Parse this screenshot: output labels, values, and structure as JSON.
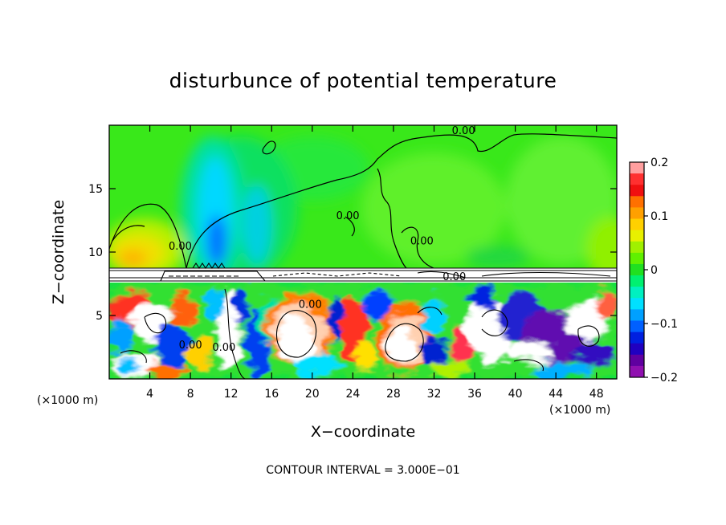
{
  "chart_data": {
    "type": "heatmap",
    "title": "disturbunce of potential temperature",
    "xlabel": "X−coordinate",
    "ylabel": "Z−coordinate",
    "x_unit_left": "(×1000 m)",
    "x_unit_right": "(×1000 m)",
    "contour_note": "CONTOUR INTERVAL = 3.000E−01",
    "xlim": [
      0,
      50
    ],
    "ylim": [
      0,
      20
    ],
    "x_ticks": [
      4,
      8,
      12,
      16,
      20,
      24,
      28,
      32,
      36,
      40,
      44,
      48
    ],
    "x_tick_labels": [
      "4",
      "8",
      "12",
      "16",
      "20",
      "24",
      "28",
      "32",
      "36",
      "40",
      "44",
      "48"
    ],
    "y_ticks": [
      5,
      10,
      15
    ],
    "y_tick_labels": [
      "5",
      "10",
      "15"
    ],
    "colorbar": {
      "range": [
        -0.2,
        0.2
      ],
      "ticks": [
        0.2,
        0.1,
        0,
        -0.1,
        -0.2
      ],
      "tick_labels": [
        "0.2",
        "0.1",
        "0",
        "−0.1",
        "−0.2"
      ],
      "colors": [
        "#ff9f9f",
        "#ff3030",
        "#f01010",
        "#ff7000",
        "#ffa000",
        "#ffd000",
        "#e8f000",
        "#a0f000",
        "#60f000",
        "#20e020",
        "#00f070",
        "#00f0c0",
        "#00e0ff",
        "#00a0ff",
        "#0060ff",
        "#0020e0",
        "#2000c0",
        "#6000a0",
        "#9010b0"
      ]
    },
    "contour_labels": [
      {
        "text": "0.00",
        "x": 34.9,
        "y": 19.3
      },
      {
        "text": "0.00",
        "x": 7.0,
        "y": 10.2
      },
      {
        "text": "0.00",
        "x": 19.8,
        "y": 5.6
      },
      {
        "text": "0.00",
        "x": 8.0,
        "y": 2.4
      },
      {
        "text": "0.00",
        "x": 11.3,
        "y": 2.2
      },
      {
        "text": "0.00",
        "x": 30.8,
        "y": 10.6
      },
      {
        "text": "0.00",
        "x": 34.0,
        "y": 7.8
      },
      {
        "text": "0.00",
        "x": 23.5,
        "y": 12.6
      }
    ]
  }
}
